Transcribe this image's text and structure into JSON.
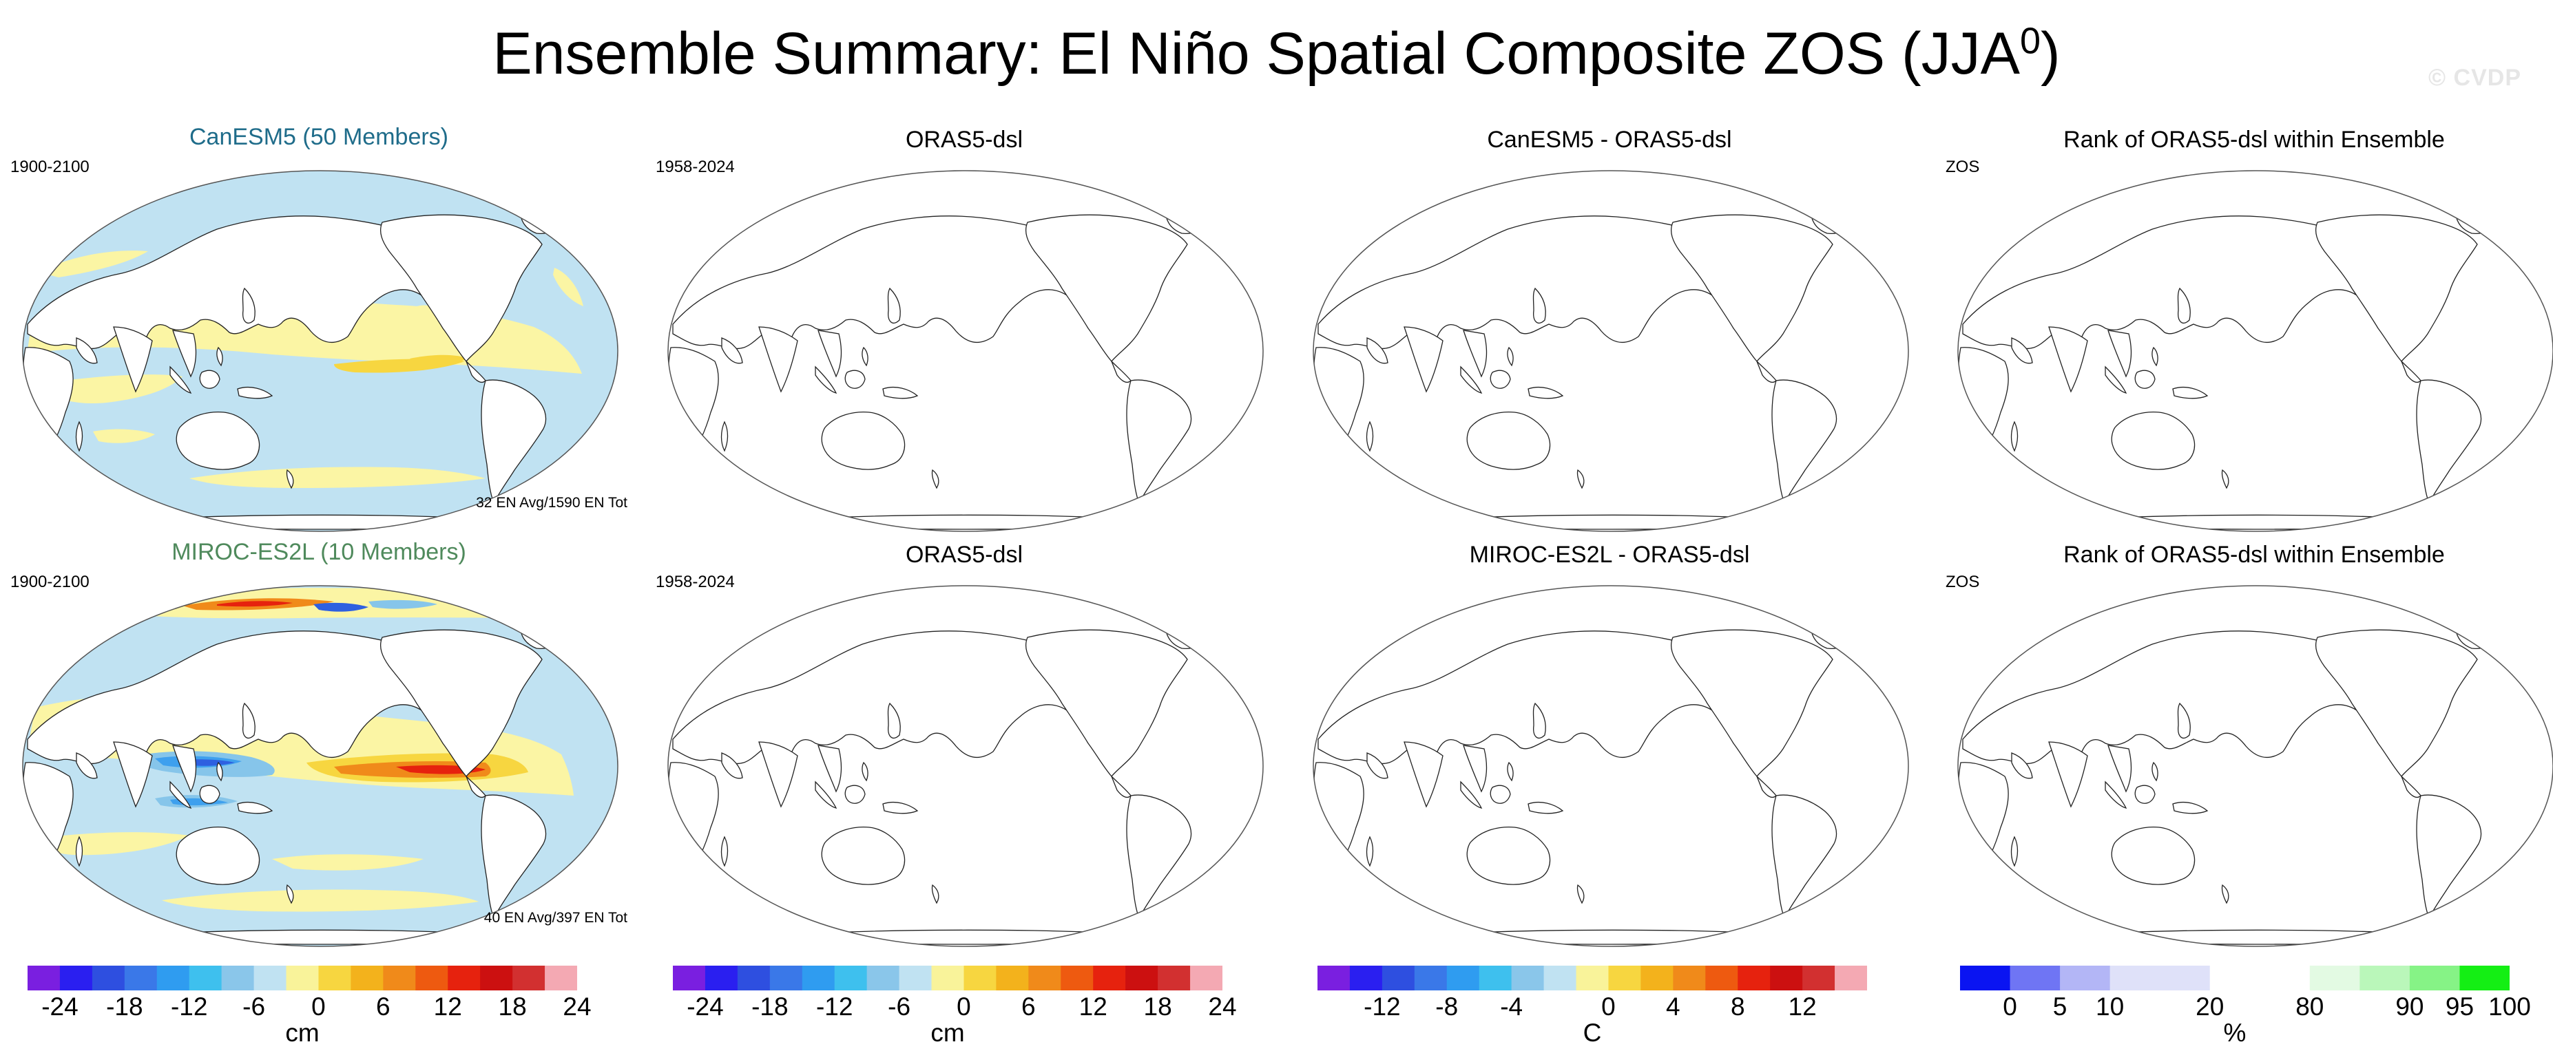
{
  "title": "Ensemble Summary: El Niño Spatial Composite ZOS (JJA",
  "title_superscript": "0",
  "title_close": ")",
  "watermark": "© CVDP",
  "chart_data": [
    {
      "type": "heatmap",
      "row": 1,
      "col": 1,
      "title": "CanESM5 (50 Members)",
      "title_color": "#1f6c8a",
      "left_label": "1900-2100",
      "note": "32 EN Avg/1590 EN Tot",
      "filled": true,
      "variant": "canesm5"
    },
    {
      "type": "heatmap",
      "row": 1,
      "col": 2,
      "title": "ORAS5-dsl",
      "left_label": "1958-2024",
      "filled": false
    },
    {
      "type": "heatmap",
      "row": 1,
      "col": 3,
      "title": "CanESM5 - ORAS5-dsl",
      "left_label": "",
      "filled": false
    },
    {
      "type": "heatmap",
      "row": 1,
      "col": 4,
      "title": "Rank of ORAS5-dsl within Ensemble",
      "left_label": "ZOS",
      "filled": false
    },
    {
      "type": "heatmap",
      "row": 2,
      "col": 1,
      "title": "MIROC-ES2L (10 Members)",
      "title_color": "#4f8a5c",
      "left_label": "1900-2100",
      "note": "40 EN Avg/397 EN Tot",
      "filled": true,
      "variant": "miroc"
    },
    {
      "type": "heatmap",
      "row": 2,
      "col": 2,
      "title": "ORAS5-dsl",
      "left_label": "1958-2024",
      "filled": false
    },
    {
      "type": "heatmap",
      "row": 2,
      "col": 3,
      "title": "MIROC-ES2L - ORAS5-dsl",
      "left_label": "",
      "filled": false
    },
    {
      "type": "heatmap",
      "row": 2,
      "col": 4,
      "title": "Rank of ORAS5-dsl within Ensemble",
      "left_label": "ZOS",
      "filled": false
    }
  ],
  "colorbars": [
    {
      "unit": "cm",
      "colors": [
        "#7a1fe0",
        "#2a1ff0",
        "#2e4fe0",
        "#3a78e8",
        "#2f9cf0",
        "#3ec0ee",
        "#8ac6ea",
        "#c0e2f2",
        "#f9f39a",
        "#f7d640",
        "#f3b21c",
        "#f08a1a",
        "#ee5a10",
        "#e6220e",
        "#cc1010",
        "#d23030",
        "#f4a9b3"
      ],
      "ticks": [
        {
          "label": "-24",
          "pos": 1
        },
        {
          "label": "-18",
          "pos": 3
        },
        {
          "label": "-12",
          "pos": 5
        },
        {
          "label": "-6",
          "pos": 7
        },
        {
          "label": "0",
          "pos": 9
        },
        {
          "label": "6",
          "pos": 11
        },
        {
          "label": "12",
          "pos": 13
        },
        {
          "label": "18",
          "pos": 15
        },
        {
          "label": "24",
          "pos": 17
        }
      ]
    },
    {
      "unit": "cm",
      "colors": [
        "#7a1fe0",
        "#2a1ff0",
        "#2e4fe0",
        "#3a78e8",
        "#2f9cf0",
        "#3ec0ee",
        "#8ac6ea",
        "#c0e2f2",
        "#f9f39a",
        "#f7d640",
        "#f3b21c",
        "#f08a1a",
        "#ee5a10",
        "#e6220e",
        "#cc1010",
        "#d23030",
        "#f4a9b3"
      ],
      "ticks": [
        {
          "label": "-24",
          "pos": 1
        },
        {
          "label": "-18",
          "pos": 3
        },
        {
          "label": "-12",
          "pos": 5
        },
        {
          "label": "-6",
          "pos": 7
        },
        {
          "label": "0",
          "pos": 9
        },
        {
          "label": "6",
          "pos": 11
        },
        {
          "label": "12",
          "pos": 13
        },
        {
          "label": "18",
          "pos": 15
        },
        {
          "label": "24",
          "pos": 17
        }
      ]
    },
    {
      "unit": "C",
      "colors": [
        "#7a1fe0",
        "#2a1ff0",
        "#2e4fe0",
        "#3a78e8",
        "#2f9cf0",
        "#3ec0ee",
        "#8ac6ea",
        "#c0e2f2",
        "#f9f39a",
        "#f7d640",
        "#f3b21c",
        "#f08a1a",
        "#ee5a10",
        "#e6220e",
        "#cc1010",
        "#d23030",
        "#f4a9b3"
      ],
      "ticks": [
        {
          "label": "-12",
          "pos": 2
        },
        {
          "label": "-8",
          "pos": 4
        },
        {
          "label": "-4",
          "pos": 6
        },
        {
          "label": "0",
          "pos": 9
        },
        {
          "label": "4",
          "pos": 11
        },
        {
          "label": "8",
          "pos": 13
        },
        {
          "label": "12",
          "pos": 15
        }
      ]
    },
    {
      "unit": "%",
      "colors": [
        "#0a14f2",
        "#6f75f4",
        "#b3b6f6",
        "#dfe1f9",
        "#dfe1f9",
        "#ffffff",
        "#ffffff",
        "#e3fae3",
        "#baf7ba",
        "#86f386",
        "#14ef14"
      ],
      "ticks": [
        {
          "label": "0",
          "pos": 1
        },
        {
          "label": "5",
          "pos": 2
        },
        {
          "label": "10",
          "pos": 3
        },
        {
          "label": "20",
          "pos": 5
        },
        {
          "label": "80",
          "pos": 7
        },
        {
          "label": "90",
          "pos": 9
        },
        {
          "label": "95",
          "pos": 10
        },
        {
          "label": "100",
          "pos": 11
        }
      ]
    }
  ],
  "land_color": "#ffffff",
  "coast_color": "#222222"
}
